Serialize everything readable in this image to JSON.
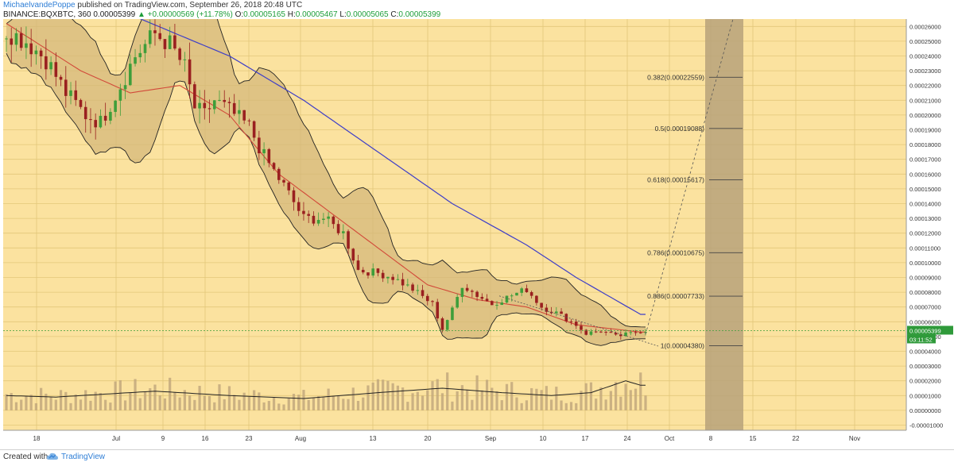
{
  "header": {
    "author": "MichaelvandePoppe",
    "published": " published on TradingView.com, September 26, 2018 20:48 UTC",
    "symbol": "BINANCE:BQXBTC, 360",
    "price": "0.00005399",
    "change": "▲ +0.00000569 (+11.78%)",
    "o_label": "O:",
    "open": "0.00005165",
    "h_label": "H:",
    "high": "0.00005467",
    "l_label": "L:",
    "low": "0.00005065",
    "c_label": "C:",
    "close": "0.00005399"
  },
  "footer": {
    "created_with": "Created with",
    "brand": "TradingView",
    "brand_icon": "tradingview-cloud-icon"
  },
  "colors": {
    "background": "#fbe29f",
    "grid": "#e3c77a",
    "bands_fill": "#d3b779",
    "ma_blue": "#3e3ec8",
    "ma_red": "#d24a3a",
    "candle_up": "#3e9e3a",
    "candle_down": "#9a2020",
    "volume": "#bfa57a",
    "shade": "#b7a27a"
  },
  "chart_data": {
    "type": "candlestick",
    "yaxis_ticks": [
      "0.00026000",
      "0.00025000",
      "0.00024000",
      "0.00023000",
      "0.00022000",
      "0.00021000",
      "0.00020000",
      "0.00019000",
      "0.00018000",
      "0.00017000",
      "0.00016000",
      "0.00015000",
      "0.00014000",
      "0.00013000",
      "0.00012000",
      "0.00011000",
      "0.00010000",
      "0.00009000",
      "0.00008000",
      "0.00007000",
      "0.00006000",
      "0.00005000",
      "0.00004000",
      "0.00003000",
      "0.00002000",
      "0.00001000",
      "0.00000000",
      "-0.00001000"
    ],
    "xaxis_ticks": [
      "18",
      "Jul",
      "9",
      "16",
      "23",
      "Aug",
      "13",
      "20",
      "Sep",
      "10",
      "17",
      "24",
      "Oct",
      "8",
      "15",
      "22",
      "Nov"
    ],
    "last_price_label": "0.00005399",
    "countdown_label": "03:11:52",
    "fib_levels": [
      {
        "label": "0.382(0.00022559)",
        "value": 0.00022559
      },
      {
        "label": "0.5(0.00019088)",
        "value": 0.00019088
      },
      {
        "label": "0.618(0.00015617)",
        "value": 0.00015617
      },
      {
        "label": "0.786(0.00010675)",
        "value": 0.00010675
      },
      {
        "label": "0.886(0.00007733)",
        "value": 7.733e-05
      },
      {
        "label": "1(0.00004380)",
        "value": 4.38e-05
      }
    ],
    "price_path": [
      [
        0,
        0.000257
      ],
      [
        4,
        0.00025
      ],
      [
        8,
        0.000238
      ],
      [
        12,
        0.000215
      ],
      [
        16,
        0.0002
      ],
      [
        19,
        0.000195
      ],
      [
        23,
        0.00022
      ],
      [
        26,
        0.00024
      ],
      [
        30,
        0.000255
      ],
      [
        33,
        0.000248
      ],
      [
        36,
        0.000232
      ],
      [
        38,
        0.000205
      ],
      [
        40,
        0.0002
      ],
      [
        42,
        0.00021
      ],
      [
        45,
        0.000203
      ],
      [
        49,
        0.000192
      ],
      [
        52,
        0.000172
      ],
      [
        56,
        0.000152
      ],
      [
        60,
        0.00013
      ],
      [
        64,
        0.00013
      ],
      [
        68,
        0.00012
      ],
      [
        71,
        9.5e-05
      ],
      [
        75,
        9.3e-05
      ],
      [
        78,
        9e-05
      ],
      [
        82,
        8.2e-05
      ],
      [
        86,
        7.2e-05
      ],
      [
        88,
        5.5e-05
      ],
      [
        90,
        6.8e-05
      ],
      [
        92,
        8.5e-05
      ],
      [
        95,
        7.8e-05
      ],
      [
        98,
        7.2e-05
      ],
      [
        102,
        7.8e-05
      ],
      [
        105,
        8.2e-05
      ],
      [
        108,
        7e-05
      ],
      [
        111,
        6.6e-05
      ],
      [
        113,
        6.2e-05
      ],
      [
        115,
        5.8e-05
      ],
      [
        117,
        5.2e-05
      ],
      [
        120,
        5.4e-05
      ],
      [
        123,
        5e-05
      ],
      [
        126,
        5.2e-05
      ],
      [
        128,
        5.4e-05
      ]
    ],
    "ma_long": [
      [
        0,
        0.0003
      ],
      [
        25,
        0.000268
      ],
      [
        45,
        0.00024
      ],
      [
        60,
        0.00021
      ],
      [
        75,
        0.000175
      ],
      [
        90,
        0.00014
      ],
      [
        105,
        0.000112
      ],
      [
        115,
        9e-05
      ],
      [
        128,
        6.5e-05
      ]
    ],
    "ma_short": [
      [
        0,
        0.000262
      ],
      [
        15,
        0.00023
      ],
      [
        25,
        0.000215
      ],
      [
        35,
        0.00022
      ],
      [
        45,
        0.0002
      ],
      [
        55,
        0.00016
      ],
      [
        65,
        0.000135
      ],
      [
        75,
        0.00011
      ],
      [
        85,
        8.5e-05
      ],
      [
        95,
        7.5e-05
      ],
      [
        105,
        7e-05
      ],
      [
        115,
        5.8e-05
      ],
      [
        128,
        5.3e-05
      ]
    ],
    "volume_baseline": [
      [
        0,
        1e-05
      ],
      [
        10,
        9e-06
      ],
      [
        20,
        1.1e-05
      ],
      [
        30,
        1.3e-05
      ],
      [
        45,
        1e-05
      ],
      [
        60,
        8e-06
      ],
      [
        75,
        1.2e-05
      ],
      [
        88,
        1.5e-05
      ],
      [
        100,
        1.2e-05
      ],
      [
        110,
        1e-05
      ],
      [
        118,
        1.2e-05
      ],
      [
        125,
        2e-05
      ],
      [
        128,
        1.7e-05
      ]
    ]
  }
}
